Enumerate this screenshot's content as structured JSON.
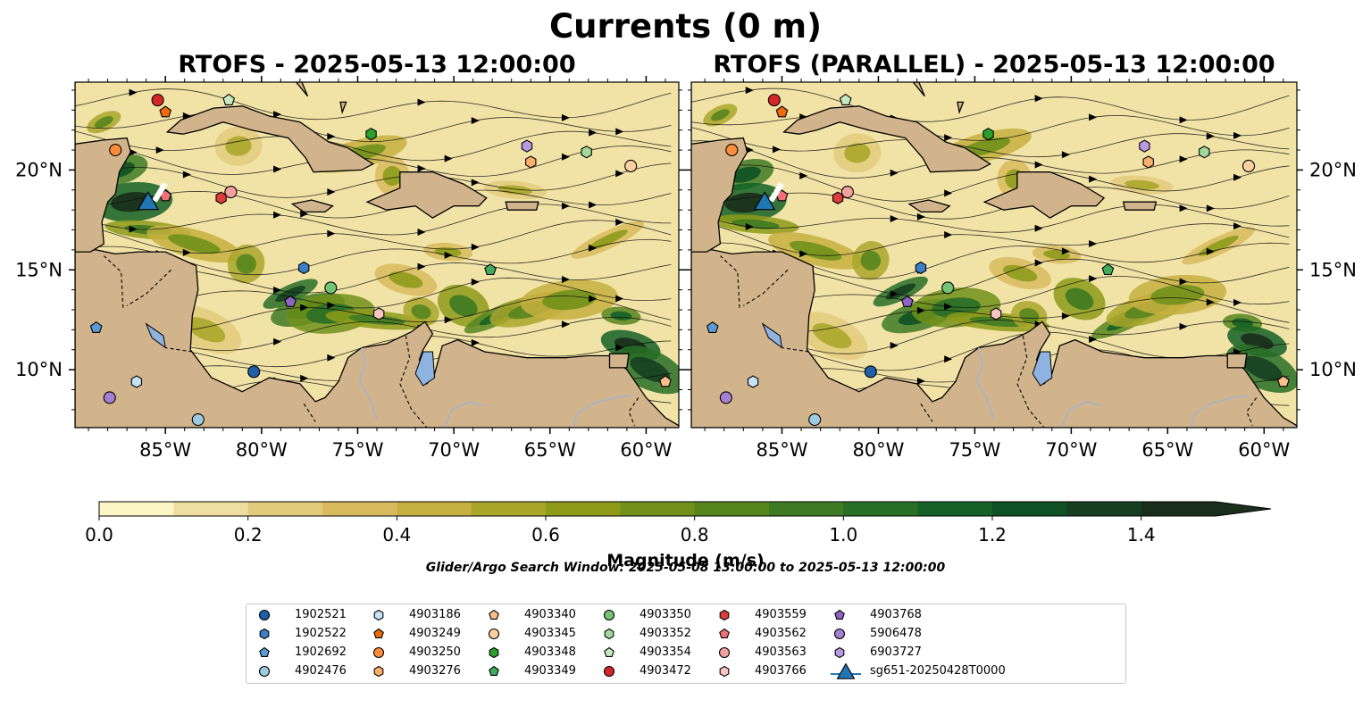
{
  "figure": {
    "title": "Currents (0 m)",
    "left_panel_title": "RTOFS - 2025-05-13 12:00:00",
    "right_panel_title": "RTOFS (PARALLEL) - 2025-05-13 12:00:00",
    "lon_ticks": [
      "85°W",
      "80°W",
      "75°W",
      "70°W",
      "65°W",
      "60°W"
    ],
    "lat_ticks": [
      "20°N",
      "15°N",
      "10°N"
    ],
    "search_window": "Glider/Argo Search Window: 2025-05-08 13:00:00 to 2025-05-13 12:00:00"
  },
  "colorbar": {
    "label": "Magnitude (m/s)",
    "ticks": [
      "0.0",
      "0.2",
      "0.4",
      "0.6",
      "0.8",
      "1.0",
      "1.2",
      "1.4"
    ],
    "levels": [
      0.0,
      0.1,
      0.2,
      0.3,
      0.4,
      0.5,
      0.6,
      0.7,
      0.8,
      0.9,
      1.0,
      1.1,
      1.2,
      1.3,
      1.4,
      1.5
    ],
    "extend": "max",
    "colors": [
      "#fbf6c3",
      "#eedfa0",
      "#e3cb7c",
      "#d8bb5d",
      "#c6b040",
      "#aaa62a",
      "#8d9b19",
      "#71911a",
      "#56851e",
      "#3e7a23",
      "#286f26",
      "#146226",
      "#0f5124",
      "#163f22",
      "#1a2e1c"
    ]
  },
  "map_colors": {
    "land": "#d2b48c",
    "ocean_base": "#f1e3a6",
    "lake": "#8eb3e0",
    "river": "#9fb5cf",
    "coast": "#000000"
  },
  "floats": [
    {
      "id": "1902521",
      "marker": "circle",
      "color": "#1f5fa6",
      "lon": -80.4,
      "lat": 9.9
    },
    {
      "id": "1902522",
      "marker": "hexagon",
      "color": "#3d7fc4",
      "lon": -77.8,
      "lat": 15.1
    },
    {
      "id": "1902692",
      "marker": "pentagon",
      "color": "#5b9bd5",
      "lon": -88.6,
      "lat": 12.1
    },
    {
      "id": "4902476",
      "marker": "circle",
      "color": "#9ecae1",
      "lon": -83.3,
      "lat": 7.5
    },
    {
      "id": "4903186",
      "marker": "hexagon",
      "color": "#c6e2f5",
      "lon": -86.5,
      "lat": 9.4
    },
    {
      "id": "4903249",
      "marker": "pentagon",
      "color": "#ee6a0c",
      "lon": -85.0,
      "lat": 22.9
    },
    {
      "id": "4903250",
      "marker": "circle",
      "color": "#fd8d3c",
      "lon": -87.6,
      "lat": 21.0
    },
    {
      "id": "4903276",
      "marker": "hexagon",
      "color": "#fdae6b",
      "lon": -66.0,
      "lat": 20.4
    },
    {
      "id": "4903340",
      "marker": "pentagon",
      "color": "#fdbf8a",
      "lon": -59.0,
      "lat": 9.4
    },
    {
      "id": "4903345",
      "marker": "circle",
      "color": "#fdd0a2",
      "lon": -60.8,
      "lat": 20.2
    },
    {
      "id": "4903348",
      "marker": "hexagon",
      "color": "#2ca02c",
      "lon": -74.3,
      "lat": 21.8
    },
    {
      "id": "4903349",
      "marker": "pentagon",
      "color": "#41ab5d",
      "lon": -68.1,
      "lat": 15.0
    },
    {
      "id": "4903350",
      "marker": "circle",
      "color": "#74c476",
      "lon": -76.4,
      "lat": 14.1
    },
    {
      "id": "4903352",
      "marker": "hexagon",
      "color": "#a1d99b",
      "lon": -63.1,
      "lat": 20.9
    },
    {
      "id": "4903354",
      "marker": "pentagon",
      "color": "#c7e9c0",
      "lon": -81.7,
      "lat": 23.5
    },
    {
      "id": "4903472",
      "marker": "circle",
      "color": "#d62728",
      "lon": -85.4,
      "lat": 23.5
    },
    {
      "id": "4903559",
      "marker": "hexagon",
      "color": "#de3c3c",
      "lon": -82.1,
      "lat": 18.6
    },
    {
      "id": "4903562",
      "marker": "pentagon",
      "color": "#f0707a",
      "lon": -85.0,
      "lat": 18.7
    },
    {
      "id": "4903563",
      "marker": "circle",
      "color": "#f4a0a0",
      "lon": -81.6,
      "lat": 18.9
    },
    {
      "id": "4903766",
      "marker": "hexagon",
      "color": "#fbc4c4",
      "lon": -73.9,
      "lat": 12.8
    },
    {
      "id": "4903768",
      "marker": "pentagon",
      "color": "#8e63c4",
      "lon": -78.5,
      "lat": 13.4
    },
    {
      "id": "5906478",
      "marker": "circle",
      "color": "#a57fd1",
      "lon": -87.9,
      "lat": 8.6
    },
    {
      "id": "6903727",
      "marker": "hexagon",
      "color": "#b99ae0",
      "lon": -66.2,
      "lat": 21.2
    }
  ],
  "glider": {
    "id": "sg651-20250428T0000",
    "marker": "triangle",
    "color": "#1f77b4",
    "lon": -85.9,
    "lat": 18.4
  }
}
